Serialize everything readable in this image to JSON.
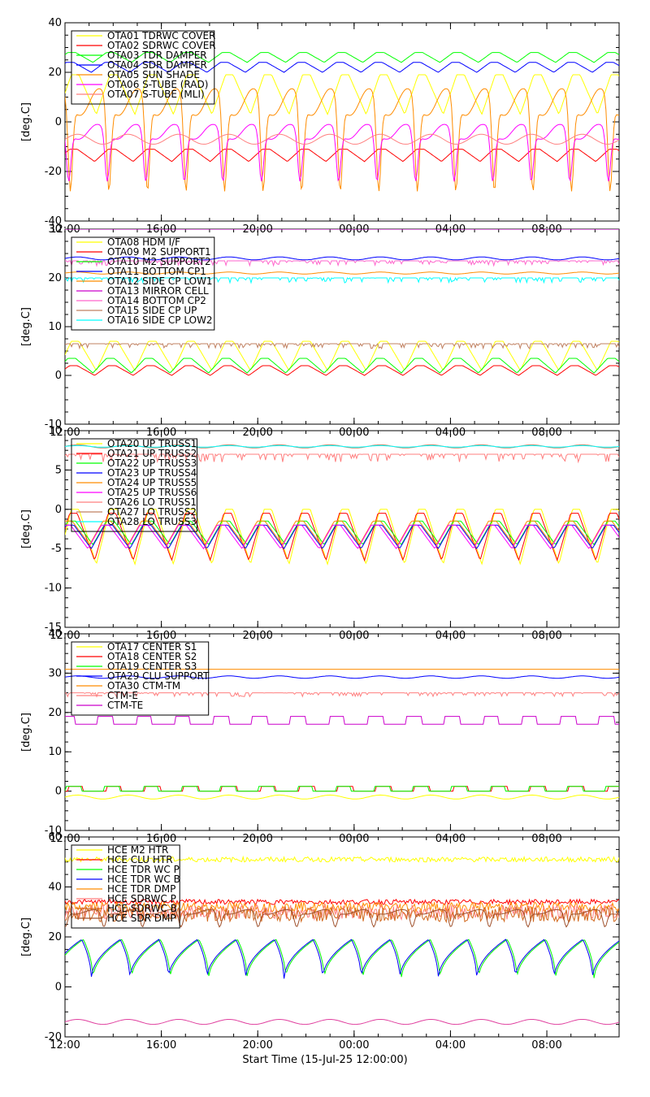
{
  "chart_data": [
    {
      "type": "line",
      "ylabel": "[deg.C]",
      "ylim": [
        -40,
        40
      ],
      "yticks": [
        40,
        20,
        0,
        -20,
        -40
      ],
      "xticks": [
        "12:00",
        "16:00",
        "20:00",
        "00:00",
        "04:00",
        "08:00"
      ],
      "series": [
        {
          "name": "OTA01 TDRWC COVER",
          "color": "#ffff00",
          "kind": "cycle",
          "base": 3,
          "amp": 16
        },
        {
          "name": "OTA02 SDRWC COVER",
          "color": "#ff0000",
          "kind": "cycle",
          "base": -16,
          "amp": 5
        },
        {
          "name": "OTA03 TDR DAMPER",
          "color": "#00ff00",
          "kind": "cycle",
          "base": 24,
          "amp": 4
        },
        {
          "name": "OTA04 SDR DAMPER",
          "color": "#0000ff",
          "kind": "cycle",
          "base": 20,
          "amp": 4
        },
        {
          "name": "OTA05 SUN SHADE",
          "color": "#ff8c00",
          "kind": "dip",
          "base": 8,
          "amp": 36
        },
        {
          "name": "OTA06 S-TUBE (RAD)",
          "color": "#ff00ff",
          "kind": "dip",
          "base": -4,
          "amp": 20
        },
        {
          "name": "OTA07 S-TUBE (MLI)",
          "color": "#ff7f7f",
          "kind": "flat",
          "base": -7,
          "amp": 2
        }
      ]
    },
    {
      "type": "line",
      "ylabel": "[deg.C]",
      "ylim": [
        -10,
        30
      ],
      "yticks": [
        30,
        20,
        10,
        0,
        -10
      ],
      "xticks": [
        "12:00",
        "16:00",
        "20:00",
        "00:00",
        "04:00",
        "08:00"
      ],
      "series": [
        {
          "name": "OTA08 HDM I/F",
          "color": "#ffff00",
          "kind": "cycle",
          "base": 1,
          "amp": 6
        },
        {
          "name": "OTA09 M2 SUPPORT1",
          "color": "#ff0000",
          "kind": "cycle",
          "base": 0,
          "amp": 2
        },
        {
          "name": "OTA10 M2 SUPPORT2",
          "color": "#00ff00",
          "kind": "cycle",
          "base": 0.5,
          "amp": 3
        },
        {
          "name": "OTA11 BOTTOM CP1",
          "color": "#0000ff",
          "kind": "flat",
          "base": 24,
          "amp": 0.3
        },
        {
          "name": "OTA12 SIDE CP LOW1",
          "color": "#ff8c00",
          "kind": "flat",
          "base": 21,
          "amp": 0.2
        },
        {
          "name": "OTA13 MIRROR CELL",
          "color": "#cc00cc",
          "kind": "flat",
          "base": 30,
          "amp": 0
        },
        {
          "name": "OTA14 BOTTOM CP2",
          "color": "#ff66cc",
          "kind": "noisy",
          "base": 23.5,
          "amp": 1
        },
        {
          "name": "OTA15 SIDE CP UP",
          "color": "#c08060",
          "kind": "noisy",
          "base": 6.5,
          "amp": 1
        },
        {
          "name": "OTA16 SIDE CP LOW2",
          "color": "#00ffff",
          "kind": "noisy",
          "base": 20,
          "amp": 1
        }
      ]
    },
    {
      "type": "line",
      "ylabel": "[deg.C]",
      "ylim": [
        -15,
        10
      ],
      "yticks": [
        10,
        5,
        0,
        -5,
        -10,
        -15
      ],
      "xticks": [
        "12:00",
        "16:00",
        "20:00",
        "00:00",
        "04:00",
        "08:00"
      ],
      "series": [
        {
          "name": "OTA20 UP TRUSS1",
          "color": "#ffff00",
          "kind": "cycle",
          "base": -7,
          "amp": 7
        },
        {
          "name": "OTA21 UP TRUSS2",
          "color": "#ff0000",
          "kind": "cycle",
          "base": -6.5,
          "amp": 6
        },
        {
          "name": "OTA22 UP TRUSS3",
          "color": "#00ff00",
          "kind": "cycle",
          "base": -4.5,
          "amp": 3
        },
        {
          "name": "OTA23 UP TRUSS4",
          "color": "#0000ff",
          "kind": "cycle",
          "base": -5,
          "amp": 3
        },
        {
          "name": "OTA24 UP TRUSS5",
          "color": "#ff8c00",
          "kind": "cycle",
          "base": -4.5,
          "amp": 3
        },
        {
          "name": "OTA25 UP TRUSS6",
          "color": "#ff00ff",
          "kind": "cycle",
          "base": -5,
          "amp": 3
        },
        {
          "name": "OTA26 LO TRUSS1",
          "color": "#ff7f7f",
          "kind": "noisy",
          "base": 7,
          "amp": 1
        },
        {
          "name": "OTA27 LO TRUSS2",
          "color": "#c08060",
          "kind": "flat",
          "base": 8,
          "amp": 0.2
        },
        {
          "name": "OTA28 LO TRUSS3",
          "color": "#00ffff",
          "kind": "flat",
          "base": 8,
          "amp": 0.1
        }
      ]
    },
    {
      "type": "line",
      "ylabel": "[deg.C]",
      "ylim": [
        -10,
        40
      ],
      "yticks": [
        40,
        30,
        20,
        10,
        0,
        -10
      ],
      "xticks": [
        "12:00",
        "16:00",
        "20:00",
        "00:00",
        "04:00",
        "08:00"
      ],
      "series": [
        {
          "name": "OTA17 CENTER S1",
          "color": "#ffff00",
          "kind": "flat",
          "base": -1.5,
          "amp": 0.5
        },
        {
          "name": "OTA18 CENTER S2",
          "color": "#ff0000",
          "kind": "step",
          "base": 0,
          "amp": 1.2
        },
        {
          "name": "OTA19 CENTER S3",
          "color": "#00ff00",
          "kind": "step",
          "base": 0,
          "amp": 1.2
        },
        {
          "name": "OTA29 CLU SUPPORT",
          "color": "#0000ff",
          "kind": "flat",
          "base": 29,
          "amp": 0.3
        },
        {
          "name": "OTA30 CTM-TM",
          "color": "#ff8c00",
          "kind": "flat",
          "base": 31,
          "amp": 0
        },
        {
          "name": "CTM-E",
          "color": "#ff7f7f",
          "kind": "noisy",
          "base": 25,
          "amp": 1
        },
        {
          "name": "CTM-TE",
          "color": "#cc00cc",
          "kind": "step",
          "base": 17,
          "amp": 2
        }
      ]
    },
    {
      "type": "line",
      "ylabel": "[deg.C]",
      "ylim": [
        -20,
        60
      ],
      "yticks": [
        60,
        40,
        20,
        0,
        -20
      ],
      "xticks": [
        "12:00",
        "16:00",
        "20:00",
        "00:00",
        "04:00",
        "08:00"
      ],
      "series": [
        {
          "name": "HCE M2 HTR",
          "color": "#ffff00",
          "kind": "band",
          "base": 51,
          "amp": 1
        },
        {
          "name": "HCE CLU HTR",
          "color": "#ff0000",
          "kind": "band",
          "base": 34,
          "amp": 1
        },
        {
          "name": "HCE TDR WC P",
          "color": "#00ff00",
          "kind": "saw",
          "base": 3,
          "amp": 16
        },
        {
          "name": "HCE TDR WC B",
          "color": "#0000ff",
          "kind": "saw",
          "base": 3,
          "amp": 16
        },
        {
          "name": "HCE TDR DMP",
          "color": "#ff8c00",
          "kind": "band",
          "base": 32,
          "amp": 2
        },
        {
          "name": "HCE SDRWC P",
          "color": "#ff7f7f",
          "kind": "band",
          "base": 30,
          "amp": 3
        },
        {
          "name": "HCE SDRWC B",
          "color": "#d2691e",
          "kind": "band",
          "base": 29,
          "amp": 3
        },
        {
          "name": "HCE SDR DMP",
          "color": "#a0522d",
          "kind": "dip",
          "base": 30,
          "amp": 6
        },
        {
          "name": "",
          "color": "#e0409f",
          "kind": "flat",
          "base": -14,
          "amp": 1
        }
      ]
    }
  ],
  "xlabel": "Start Time (15-Jul-25 12:00:00)"
}
